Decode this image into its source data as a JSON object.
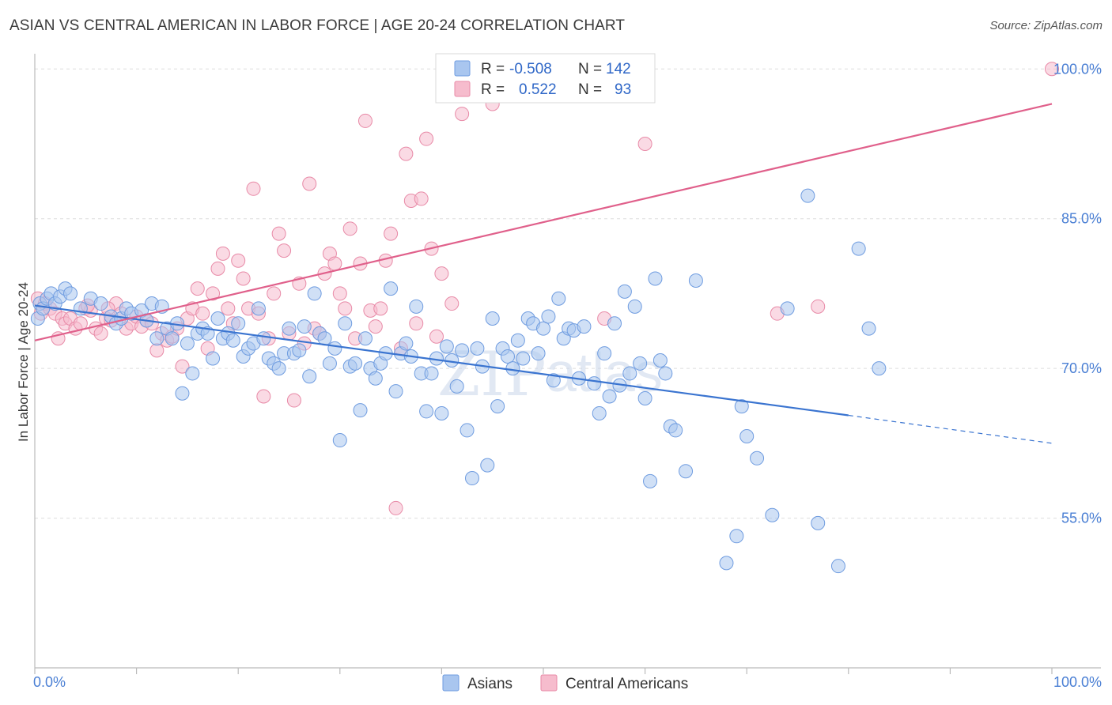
{
  "title": "ASIAN VS CENTRAL AMERICAN IN LABOR FORCE | AGE 20-24 CORRELATION CHART",
  "source": "Source: ZipAtlas.com",
  "watermark": {
    "zip": "ZIP",
    "atlas": "atlas"
  },
  "colors": {
    "asian_fill": "#a9c6ef",
    "asian_stroke": "#6f9ce0",
    "asian_line": "#3a74d0",
    "ca_fill": "#f6bccd",
    "ca_stroke": "#e88aa7",
    "ca_line": "#e0608b",
    "tick_text": "#4a7fd4",
    "grid": "#dddddd"
  },
  "legend": {
    "rows": [
      {
        "r_label": "R =",
        "r_value": "-0.508",
        "n_label": "N =",
        "n_value": "142"
      },
      {
        "r_label": "R =",
        "r_value": "0.522",
        "n_label": "N =",
        "n_value": "93"
      }
    ]
  },
  "bottom_legend": {
    "asians": "Asians",
    "central_americans": "Central Americans"
  },
  "chart_data": {
    "type": "scatter",
    "title": "ASIAN VS CENTRAL AMERICAN IN LABOR FORCE | AGE 20-24 CORRELATION CHART",
    "xlabel": "",
    "ylabel": "In Labor Force | Age 20-24",
    "xlim": [
      0,
      100
    ],
    "ylim": [
      40,
      102
    ],
    "x_tick_labels": [
      "0.0%",
      "100.0%"
    ],
    "y_ticks": [
      55,
      70,
      85,
      100
    ],
    "y_tick_labels": [
      "55.0%",
      "70.0%",
      "85.0%",
      "100.0%"
    ],
    "grid": "horizontal dashed",
    "legend_position": "top-center",
    "series": [
      {
        "name": "Asians",
        "r": -0.508,
        "n": 142,
        "trend": {
          "x0": 0,
          "y0": 76.3,
          "x1": 80,
          "y1": 65.3,
          "dashed_to_x": 100,
          "dashed_to_y": 62.5
        },
        "points": [
          [
            0.3,
            75.0
          ],
          [
            0.5,
            76.5
          ],
          [
            0.8,
            76.0
          ],
          [
            1.2,
            77.0
          ],
          [
            1.6,
            77.5
          ],
          [
            2.0,
            76.5
          ],
          [
            2.5,
            77.2
          ],
          [
            3.0,
            78.0
          ],
          [
            3.5,
            77.5
          ],
          [
            4.5,
            76.0
          ],
          [
            5.5,
            77.0
          ],
          [
            6.5,
            76.5
          ],
          [
            7.5,
            75.2
          ],
          [
            8.0,
            74.5
          ],
          [
            8.5,
            75.0
          ],
          [
            9.0,
            76.0
          ],
          [
            9.5,
            75.5
          ],
          [
            10.5,
            75.8
          ],
          [
            11.0,
            74.8
          ],
          [
            11.5,
            76.5
          ],
          [
            12.0,
            73.0
          ],
          [
            12.5,
            76.2
          ],
          [
            13.0,
            74.0
          ],
          [
            13.5,
            73.0
          ],
          [
            14.0,
            74.5
          ],
          [
            14.5,
            67.5
          ],
          [
            15.0,
            72.5
          ],
          [
            15.5,
            69.5
          ],
          [
            16.0,
            73.5
          ],
          [
            16.5,
            74.0
          ],
          [
            17.0,
            73.5
          ],
          [
            17.5,
            71.0
          ],
          [
            18.0,
            75.0
          ],
          [
            18.5,
            73.0
          ],
          [
            19.0,
            73.5
          ],
          [
            19.5,
            72.8
          ],
          [
            20.0,
            74.5
          ],
          [
            20.5,
            71.2
          ],
          [
            21.0,
            72.0
          ],
          [
            21.5,
            72.5
          ],
          [
            22.0,
            76.0
          ],
          [
            22.5,
            73.0
          ],
          [
            23.0,
            71.0
          ],
          [
            23.5,
            70.5
          ],
          [
            24.0,
            70.0
          ],
          [
            24.5,
            71.5
          ],
          [
            25.0,
            74.0
          ],
          [
            25.5,
            71.5
          ],
          [
            26.0,
            71.8
          ],
          [
            26.5,
            74.2
          ],
          [
            27.0,
            69.2
          ],
          [
            27.5,
            77.5
          ],
          [
            28.0,
            73.5
          ],
          [
            28.5,
            73.0
          ],
          [
            29.0,
            70.5
          ],
          [
            29.5,
            72.0
          ],
          [
            30.0,
            62.8
          ],
          [
            30.5,
            74.5
          ],
          [
            31.0,
            70.2
          ],
          [
            31.5,
            70.5
          ],
          [
            32.0,
            65.8
          ],
          [
            32.5,
            73.0
          ],
          [
            33.0,
            70.0
          ],
          [
            33.5,
            69.0
          ],
          [
            34.0,
            70.5
          ],
          [
            34.5,
            71.5
          ],
          [
            35.0,
            78.0
          ],
          [
            35.5,
            67.7
          ],
          [
            36.0,
            71.5
          ],
          [
            36.5,
            72.5
          ],
          [
            37.0,
            71.2
          ],
          [
            37.5,
            76.2
          ],
          [
            38.0,
            69.5
          ],
          [
            38.5,
            65.7
          ],
          [
            39.0,
            69.5
          ],
          [
            39.5,
            71.0
          ],
          [
            40.0,
            65.5
          ],
          [
            40.5,
            72.2
          ],
          [
            41.0,
            70.8
          ],
          [
            41.5,
            68.2
          ],
          [
            42.0,
            71.8
          ],
          [
            42.5,
            63.8
          ],
          [
            43.0,
            59.0
          ],
          [
            43.5,
            72.0
          ],
          [
            44.0,
            70.2
          ],
          [
            44.5,
            60.3
          ],
          [
            45.0,
            75.0
          ],
          [
            45.5,
            66.2
          ],
          [
            46.0,
            72.0
          ],
          [
            46.5,
            71.2
          ],
          [
            47.0,
            70.0
          ],
          [
            47.5,
            72.8
          ],
          [
            48.0,
            71.0
          ],
          [
            48.5,
            75.0
          ],
          [
            49.0,
            74.5
          ],
          [
            49.5,
            71.5
          ],
          [
            50.0,
            74.0
          ],
          [
            50.5,
            75.2
          ],
          [
            51.0,
            68.8
          ],
          [
            51.5,
            77.0
          ],
          [
            52.0,
            73.0
          ],
          [
            52.5,
            74.0
          ],
          [
            53.0,
            73.8
          ],
          [
            53.5,
            69.0
          ],
          [
            54.0,
            74.2
          ],
          [
            55.0,
            68.5
          ],
          [
            55.5,
            65.5
          ],
          [
            56.0,
            71.5
          ],
          [
            56.5,
            67.2
          ],
          [
            57.0,
            74.5
          ],
          [
            57.5,
            68.3
          ],
          [
            58.0,
            77.7
          ],
          [
            58.5,
            69.5
          ],
          [
            59.0,
            76.2
          ],
          [
            59.5,
            70.5
          ],
          [
            60.0,
            67.0
          ],
          [
            60.5,
            58.7
          ],
          [
            61.0,
            79.0
          ],
          [
            61.5,
            70.8
          ],
          [
            62.0,
            69.5
          ],
          [
            62.5,
            64.2
          ],
          [
            63.0,
            63.8
          ],
          [
            64.0,
            59.7
          ],
          [
            65.0,
            78.8
          ],
          [
            68.0,
            50.5
          ],
          [
            69.0,
            53.2
          ],
          [
            69.5,
            66.2
          ],
          [
            70.0,
            63.2
          ],
          [
            71.0,
            61.0
          ],
          [
            72.5,
            55.3
          ],
          [
            74.0,
            76.0
          ],
          [
            76.0,
            87.3
          ],
          [
            77.0,
            54.5
          ],
          [
            79.0,
            50.2
          ],
          [
            81.0,
            82.0
          ],
          [
            82.0,
            74.0
          ],
          [
            83.0,
            70.0
          ]
        ]
      },
      {
        "name": "Central Americans",
        "r": 0.522,
        "n": 93,
        "trend": {
          "x0": 0,
          "y0": 72.8,
          "x1": 100,
          "y1": 96.5
        },
        "points": [
          [
            0.3,
            77.0
          ],
          [
            0.6,
            75.5
          ],
          [
            1.0,
            76.5
          ],
          [
            1.5,
            76.0
          ],
          [
            2.0,
            75.5
          ],
          [
            2.3,
            73.0
          ],
          [
            2.7,
            75.0
          ],
          [
            3.0,
            74.5
          ],
          [
            3.5,
            75.0
          ],
          [
            4.0,
            74.0
          ],
          [
            4.5,
            74.5
          ],
          [
            5.0,
            76.0
          ],
          [
            5.5,
            75.8
          ],
          [
            6.0,
            74.0
          ],
          [
            6.5,
            73.5
          ],
          [
            7.0,
            75.0
          ],
          [
            7.5,
            74.8
          ],
          [
            8.0,
            76.5
          ],
          [
            8.5,
            75.5
          ],
          [
            9.0,
            74.0
          ],
          [
            9.5,
            74.5
          ],
          [
            10.0,
            75.2
          ],
          [
            10.5,
            74.2
          ],
          [
            11.0,
            74.8
          ],
          [
            11.5,
            74.5
          ],
          [
            12.0,
            71.8
          ],
          [
            12.5,
            73.5
          ],
          [
            13.0,
            72.8
          ],
          [
            13.5,
            73.2
          ],
          [
            14.0,
            74.0
          ],
          [
            14.5,
            70.2
          ],
          [
            15.0,
            75.0
          ],
          [
            15.5,
            76.0
          ],
          [
            16.0,
            78.0
          ],
          [
            16.5,
            75.5
          ],
          [
            17.0,
            72.0
          ],
          [
            17.5,
            77.5
          ],
          [
            18.0,
            80.0
          ],
          [
            18.5,
            81.5
          ],
          [
            19.0,
            76.0
          ],
          [
            19.5,
            74.5
          ],
          [
            20.0,
            80.8
          ],
          [
            20.5,
            79.0
          ],
          [
            21.0,
            76.0
          ],
          [
            21.5,
            88.0
          ],
          [
            22.0,
            75.5
          ],
          [
            22.5,
            67.2
          ],
          [
            23.0,
            73.0
          ],
          [
            23.5,
            77.5
          ],
          [
            24.0,
            83.5
          ],
          [
            24.5,
            81.8
          ],
          [
            25.0,
            73.5
          ],
          [
            25.5,
            66.8
          ],
          [
            26.0,
            78.5
          ],
          [
            26.5,
            72.5
          ],
          [
            27.0,
            88.5
          ],
          [
            27.5,
            74.0
          ],
          [
            28.0,
            73.5
          ],
          [
            28.5,
            79.5
          ],
          [
            29.0,
            81.5
          ],
          [
            29.5,
            80.5
          ],
          [
            30.0,
            77.5
          ],
          [
            30.5,
            76.0
          ],
          [
            31.0,
            84.0
          ],
          [
            31.5,
            73.0
          ],
          [
            32.0,
            80.5
          ],
          [
            32.5,
            94.8
          ],
          [
            33.0,
            75.8
          ],
          [
            33.5,
            74.2
          ],
          [
            34.0,
            76.0
          ],
          [
            34.5,
            80.8
          ],
          [
            35.0,
            83.5
          ],
          [
            35.5,
            56.0
          ],
          [
            36.0,
            72.0
          ],
          [
            36.5,
            91.5
          ],
          [
            37.0,
            86.8
          ],
          [
            37.5,
            74.5
          ],
          [
            38.0,
            87.0
          ],
          [
            38.5,
            93.0
          ],
          [
            39.0,
            82.0
          ],
          [
            39.5,
            73.2
          ],
          [
            40.0,
            79.5
          ],
          [
            41.0,
            76.5
          ],
          [
            42.0,
            95.5
          ],
          [
            44.0,
            98.8
          ],
          [
            45.0,
            96.5
          ],
          [
            46.0,
            100.0
          ],
          [
            56.0,
            75.0
          ],
          [
            60.0,
            92.5
          ],
          [
            73.0,
            75.5
          ],
          [
            77.0,
            76.2
          ],
          [
            100.0,
            100.0
          ],
          [
            5.2,
            76.3
          ],
          [
            7.2,
            76.0
          ]
        ]
      }
    ]
  }
}
